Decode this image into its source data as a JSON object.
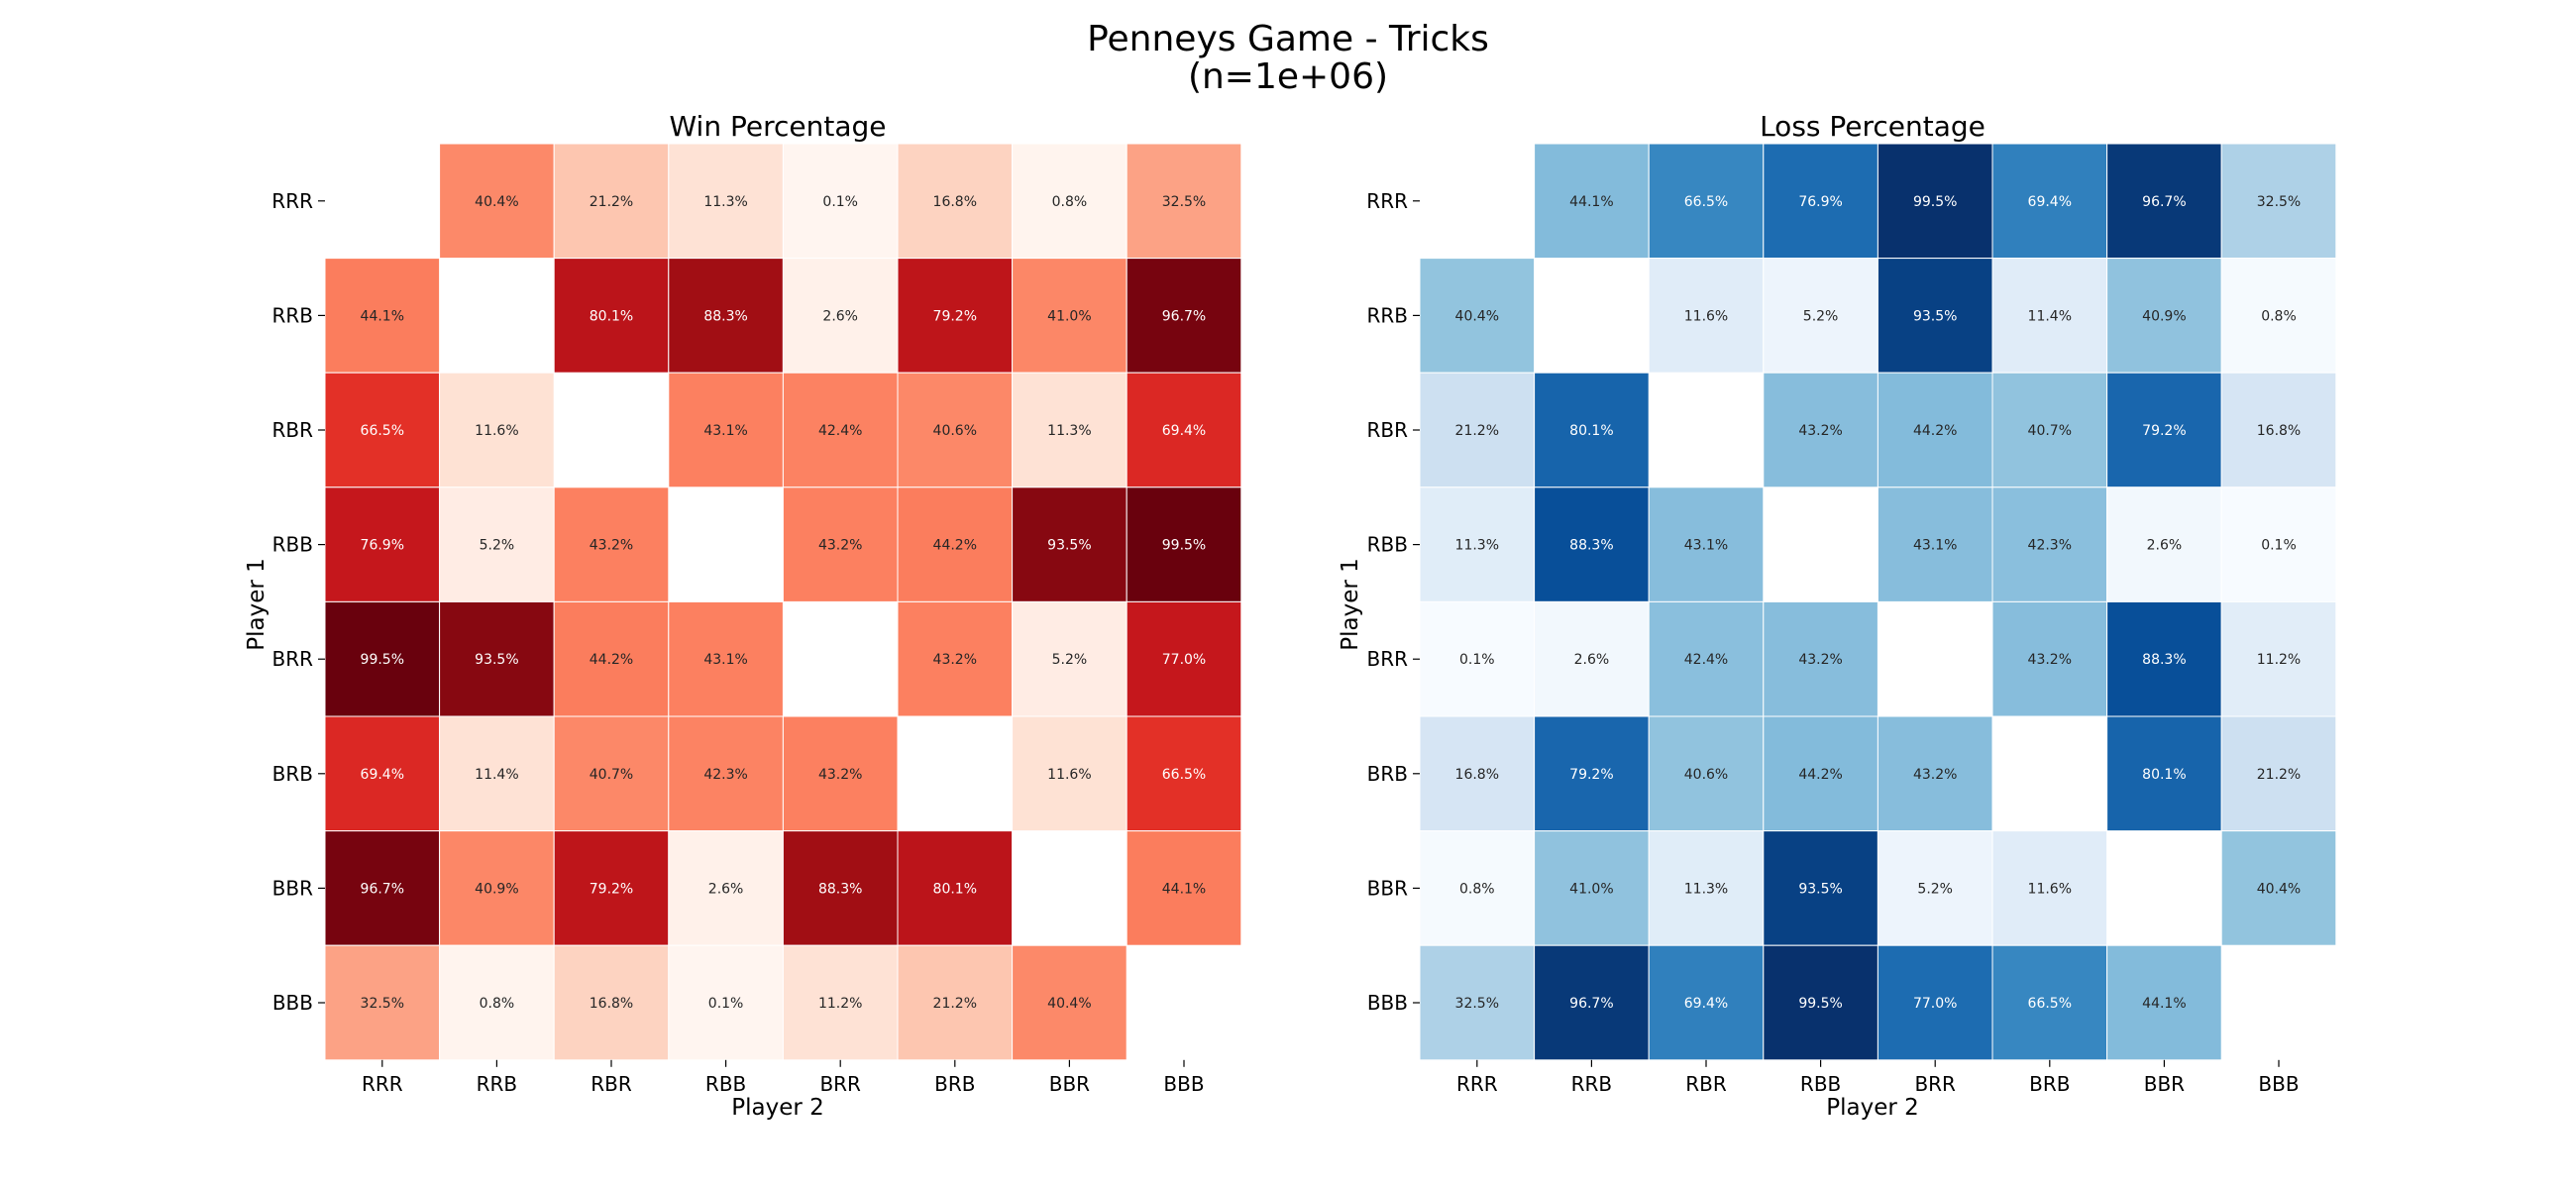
{
  "chart_data": {
    "type": "heatmap",
    "title": "Penneys Game - Tricks",
    "subtitle": "(n=1e+06)",
    "labels": [
      "RRR",
      "RRB",
      "RBR",
      "RBB",
      "BRR",
      "BRB",
      "BBR",
      "BBB"
    ],
    "xlabel": "Player 2",
    "ylabel": "Player 1",
    "panels": [
      {
        "name": "win",
        "title": "Win Percentage",
        "colormap": "reds",
        "value_range": [
          0,
          100
        ],
        "values": [
          [
            null,
            40.4,
            21.2,
            11.3,
            0.1,
            16.8,
            0.8,
            32.5
          ],
          [
            44.1,
            null,
            80.1,
            88.3,
            2.6,
            79.2,
            41.0,
            96.7
          ],
          [
            66.5,
            11.6,
            null,
            43.1,
            42.4,
            40.6,
            11.3,
            69.4
          ],
          [
            76.9,
            5.2,
            43.2,
            null,
            43.2,
            44.2,
            93.5,
            99.5
          ],
          [
            99.5,
            93.5,
            44.2,
            43.1,
            null,
            43.2,
            5.2,
            77.0
          ],
          [
            69.4,
            11.4,
            40.7,
            42.3,
            43.2,
            null,
            11.6,
            66.5
          ],
          [
            96.7,
            40.9,
            79.2,
            2.6,
            88.3,
            80.1,
            null,
            44.1
          ],
          [
            32.5,
            0.8,
            16.8,
            0.1,
            11.2,
            21.2,
            40.4,
            null
          ]
        ]
      },
      {
        "name": "loss",
        "title": "Loss Percentage",
        "colormap": "blues",
        "value_range": [
          0,
          100
        ],
        "values": [
          [
            null,
            44.1,
            66.5,
            76.9,
            99.5,
            69.4,
            96.7,
            32.5
          ],
          [
            40.4,
            null,
            11.6,
            5.2,
            93.5,
            11.4,
            40.9,
            0.8
          ],
          [
            21.2,
            80.1,
            null,
            43.2,
            44.2,
            40.7,
            79.2,
            16.8
          ],
          [
            11.3,
            88.3,
            43.1,
            null,
            43.1,
            42.3,
            2.6,
            0.1
          ],
          [
            0.1,
            2.6,
            42.4,
            43.2,
            null,
            43.2,
            88.3,
            11.2
          ],
          [
            16.8,
            79.2,
            40.6,
            44.2,
            43.2,
            null,
            80.1,
            21.2
          ],
          [
            0.8,
            41.0,
            11.3,
            93.5,
            5.2,
            11.6,
            null,
            40.4
          ],
          [
            32.5,
            96.7,
            69.4,
            99.5,
            77.0,
            66.5,
            44.1,
            null
          ]
        ]
      }
    ]
  }
}
